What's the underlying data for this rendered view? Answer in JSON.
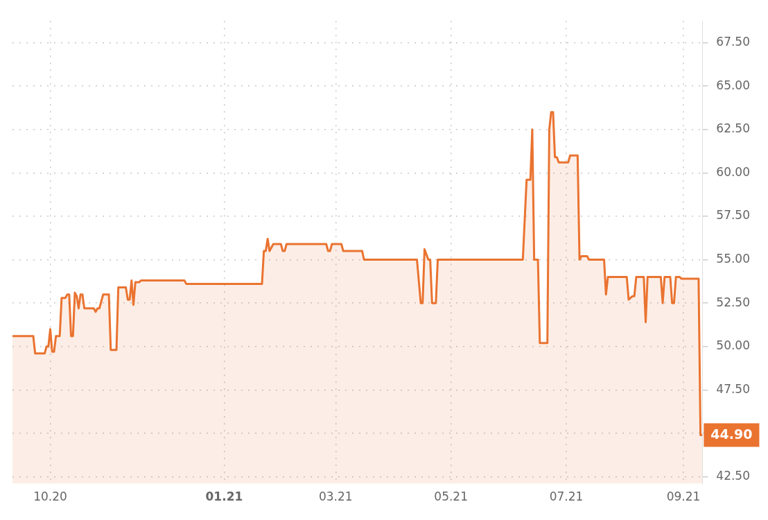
{
  "chart_data": {
    "type": "area",
    "grid": true,
    "legend": false,
    "marker": "none",
    "line_style": "solid",
    "xlim": [
      "2020-09-11",
      "2021-09-11"
    ],
    "xticks": [
      {
        "value": "2020-10-01",
        "label": "10.20"
      },
      {
        "value": "2021-01-01",
        "label": "01.21"
      },
      {
        "value": "2021-03-01",
        "label": "03.21"
      },
      {
        "value": "2021-05-01",
        "label": "05.21"
      },
      {
        "value": "2021-07-01",
        "label": "07.21"
      },
      {
        "value": "2021-09-01",
        "label": "09.21"
      }
    ],
    "ylim": [
      42.1,
      68.75
    ],
    "yticks": [
      {
        "value": 42.5,
        "label": "42.50"
      },
      {
        "value": 45,
        "label": null
      },
      {
        "value": 47.5,
        "label": "47.50"
      },
      {
        "value": 50,
        "label": "50.00"
      },
      {
        "value": 52.5,
        "label": "52.50"
      },
      {
        "value": 55,
        "label": "55.00"
      },
      {
        "value": 57.5,
        "label": "57.50"
      },
      {
        "value": 60,
        "label": "60.00"
      },
      {
        "value": 62.5,
        "label": "62.50"
      },
      {
        "value": 65,
        "label": "65.00"
      },
      {
        "value": 67.5,
        "label": "67.50"
      }
    ],
    "annotations": [
      {
        "text": "44.90",
        "x": "2021-09-11",
        "y": 44.9
      }
    ],
    "series": [
      {
        "color": "#ea7330",
        "x": [
          "2020-09-11",
          "2020-09-22",
          "2020-09-23",
          "2020-09-28",
          "2020-09-29",
          "2020-09-30",
          "2020-10-01",
          "2020-10-02",
          "2020-10-03",
          "2020-10-04",
          "2020-10-06",
          "2020-10-07",
          "2020-10-09",
          "2020-10-10",
          "2020-10-11",
          "2020-10-12",
          "2020-10-13",
          "2020-10-14",
          "2020-10-15",
          "2020-10-16",
          "2020-10-17",
          "2020-10-18",
          "2020-10-19",
          "2020-10-24",
          "2020-10-25",
          "2020-10-26",
          "2020-10-27",
          "2020-10-29",
          "2020-11-01",
          "2020-11-02",
          "2020-11-05",
          "2020-11-06",
          "2020-11-10",
          "2020-11-11",
          "2020-11-12",
          "2020-11-13",
          "2020-11-14",
          "2020-11-15",
          "2020-11-17",
          "2020-11-18",
          "2020-12-11",
          "2020-12-12",
          "2021-01-21",
          "2021-01-22",
          "2021-01-23",
          "2021-01-24",
          "2021-01-25",
          "2021-01-27",
          "2021-01-31",
          "2021-02-01",
          "2021-02-02",
          "2021-02-03",
          "2021-02-24",
          "2021-02-25",
          "2021-02-26",
          "2021-02-27",
          "2021-03-04",
          "2021-03-05",
          "2021-03-15",
          "2021-03-16",
          "2021-04-13",
          "2021-04-15",
          "2021-04-16",
          "2021-04-17",
          "2021-04-19",
          "2021-04-20",
          "2021-04-21",
          "2021-04-23",
          "2021-04-24",
          "2021-06-08",
          "2021-06-10",
          "2021-06-12",
          "2021-06-13",
          "2021-06-14",
          "2021-06-16",
          "2021-06-17",
          "2021-06-21",
          "2021-06-22",
          "2021-06-23",
          "2021-06-24",
          "2021-06-25",
          "2021-06-26",
          "2021-06-27",
          "2021-07-02",
          "2021-07-03",
          "2021-07-07",
          "2021-07-08",
          "2021-07-09",
          "2021-07-12",
          "2021-07-13",
          "2021-07-21",
          "2021-07-22",
          "2021-07-23",
          "2021-08-02",
          "2021-08-03",
          "2021-08-05",
          "2021-08-06",
          "2021-08-07",
          "2021-08-11",
          "2021-08-12",
          "2021-08-13",
          "2021-08-20",
          "2021-08-21",
          "2021-08-22",
          "2021-08-25",
          "2021-08-26",
          "2021-08-27",
          "2021-08-28",
          "2021-08-30",
          "2021-08-31",
          "2021-09-09",
          "2021-09-10",
          "2021-09-11"
        ],
        "values": [
          50.6,
          50.6,
          49.6,
          49.6,
          50.0,
          50.0,
          51.0,
          49.7,
          49.7,
          50.6,
          50.6,
          52.8,
          52.8,
          53.0,
          53.0,
          50.6,
          50.6,
          53.1,
          52.9,
          52.2,
          53.0,
          53.0,
          52.2,
          52.2,
          52.0,
          52.2,
          52.2,
          53.0,
          53.0,
          49.8,
          49.8,
          53.4,
          53.4,
          52.7,
          52.7,
          53.8,
          52.4,
          53.7,
          53.7,
          53.8,
          53.8,
          53.6,
          53.6,
          55.5,
          55.5,
          56.2,
          55.5,
          55.9,
          55.9,
          55.5,
          55.5,
          55.9,
          55.9,
          55.5,
          55.5,
          55.9,
          55.9,
          55.5,
          55.5,
          55.0,
          55.0,
          52.5,
          52.5,
          55.6,
          55.0,
          55.0,
          52.5,
          52.5,
          55.0,
          55.0,
          59.6,
          59.6,
          62.5,
          55.0,
          55.0,
          50.2,
          50.2,
          62.5,
          63.5,
          63.5,
          60.9,
          60.9,
          60.6,
          60.6,
          61.0,
          61.0,
          55.0,
          55.2,
          55.2,
          55.0,
          55.0,
          53.0,
          54.0,
          54.0,
          52.7,
          52.9,
          52.9,
          54.0,
          54.0,
          51.4,
          54.0,
          54.0,
          52.5,
          54.0,
          54.0,
          52.5,
          52.5,
          54.0,
          54.0,
          53.9,
          53.9,
          44.9,
          44.9
        ]
      }
    ]
  }
}
